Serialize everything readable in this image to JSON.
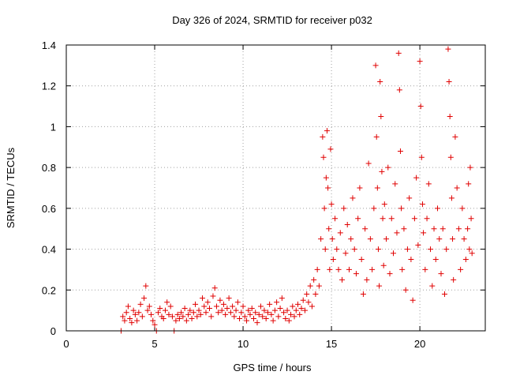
{
  "chart_data": {
    "type": "scatter",
    "title": "Day 326 of 2024, SRMTID for receiver p032",
    "xlabel": "GPS time / hours",
    "ylabel": "SRMTID / TECUs",
    "xlim": [
      0,
      23.7
    ],
    "ylim": [
      0,
      1.4
    ],
    "x_ticks": [
      0,
      5,
      10,
      15,
      20
    ],
    "y_ticks": [
      0,
      0.2,
      0.4,
      0.6,
      0.8,
      1,
      1.2,
      1.4
    ],
    "x_tick_labels": [
      "0",
      "5",
      "10",
      "15",
      "20"
    ],
    "y_tick_labels": [
      "0",
      "0.2",
      "0.4",
      "0.6",
      "0.8",
      "1",
      "1.2",
      "1.4"
    ],
    "grid": true,
    "marker": "+",
    "color": "#e00000",
    "series": [
      {
        "name": "p032",
        "points": [
          [
            3.1,
            0.0
          ],
          [
            3.2,
            0.07
          ],
          [
            3.3,
            0.05
          ],
          [
            3.4,
            0.09
          ],
          [
            3.5,
            0.12
          ],
          [
            3.6,
            0.06
          ],
          [
            3.7,
            0.04
          ],
          [
            3.8,
            0.1
          ],
          [
            3.9,
            0.08
          ],
          [
            4.0,
            0.05
          ],
          [
            4.1,
            0.09
          ],
          [
            4.2,
            0.13
          ],
          [
            4.3,
            0.07
          ],
          [
            4.4,
            0.16
          ],
          [
            4.5,
            0.22
          ],
          [
            4.6,
            0.1
          ],
          [
            4.7,
            0.12
          ],
          [
            4.8,
            0.08
          ],
          [
            4.9,
            0.05
          ],
          [
            5.0,
            0.03
          ],
          [
            5.1,
            0.0
          ],
          [
            5.2,
            0.09
          ],
          [
            5.3,
            0.11
          ],
          [
            5.4,
            0.07
          ],
          [
            5.5,
            0.06
          ],
          [
            5.6,
            0.1
          ],
          [
            5.7,
            0.14
          ],
          [
            5.8,
            0.08
          ],
          [
            5.9,
            0.12
          ],
          [
            6.0,
            0.07
          ],
          [
            6.1,
            0.0
          ],
          [
            6.2,
            0.05
          ],
          [
            6.3,
            0.08
          ],
          [
            6.4,
            0.06
          ],
          [
            6.5,
            0.09
          ],
          [
            6.6,
            0.07
          ],
          [
            6.7,
            0.11
          ],
          [
            6.8,
            0.05
          ],
          [
            6.9,
            0.08
          ],
          [
            7.0,
            0.1
          ],
          [
            7.1,
            0.06
          ],
          [
            7.2,
            0.09
          ],
          [
            7.3,
            0.13
          ],
          [
            7.4,
            0.07
          ],
          [
            7.5,
            0.1
          ],
          [
            7.6,
            0.08
          ],
          [
            7.7,
            0.16
          ],
          [
            7.8,
            0.12
          ],
          [
            7.9,
            0.09
          ],
          [
            8.0,
            0.14
          ],
          [
            8.1,
            0.11
          ],
          [
            8.2,
            0.07
          ],
          [
            8.3,
            0.17
          ],
          [
            8.4,
            0.21
          ],
          [
            8.5,
            0.12
          ],
          [
            8.6,
            0.09
          ],
          [
            8.7,
            0.15
          ],
          [
            8.8,
            0.1
          ],
          [
            8.9,
            0.13
          ],
          [
            9.0,
            0.08
          ],
          [
            9.1,
            0.11
          ],
          [
            9.2,
            0.16
          ],
          [
            9.3,
            0.09
          ],
          [
            9.4,
            0.12
          ],
          [
            9.5,
            0.07
          ],
          [
            9.6,
            0.1
          ],
          [
            9.7,
            0.14
          ],
          [
            9.8,
            0.06
          ],
          [
            9.9,
            0.09
          ],
          [
            10.0,
            0.12
          ],
          [
            10.1,
            0.07
          ],
          [
            10.2,
            0.05
          ],
          [
            10.3,
            0.1
          ],
          [
            10.4,
            0.08
          ],
          [
            10.5,
            0.11
          ],
          [
            10.6,
            0.06
          ],
          [
            10.7,
            0.09
          ],
          [
            10.8,
            0.04
          ],
          [
            10.9,
            0.08
          ],
          [
            11.0,
            0.12
          ],
          [
            11.1,
            0.07
          ],
          [
            11.2,
            0.1
          ],
          [
            11.3,
            0.06
          ],
          [
            11.4,
            0.09
          ],
          [
            11.5,
            0.13
          ],
          [
            11.6,
            0.08
          ],
          [
            11.7,
            0.05
          ],
          [
            11.8,
            0.1
          ],
          [
            11.9,
            0.14
          ],
          [
            12.0,
            0.07
          ],
          [
            12.1,
            0.11
          ],
          [
            12.2,
            0.16
          ],
          [
            12.3,
            0.09
          ],
          [
            12.4,
            0.06
          ],
          [
            12.5,
            0.1
          ],
          [
            12.6,
            0.05
          ],
          [
            12.7,
            0.08
          ],
          [
            12.8,
            0.12
          ],
          [
            12.9,
            0.07
          ],
          [
            13.0,
            0.1
          ],
          [
            13.1,
            0.13
          ],
          [
            13.2,
            0.08
          ],
          [
            13.3,
            0.11
          ],
          [
            13.4,
            0.15
          ],
          [
            13.5,
            0.1
          ],
          [
            13.6,
            0.18
          ],
          [
            13.7,
            0.14
          ],
          [
            13.8,
            0.22
          ],
          [
            13.9,
            0.12
          ],
          [
            14.0,
            0.25
          ],
          [
            14.1,
            0.18
          ],
          [
            14.2,
            0.3
          ],
          [
            14.3,
            0.22
          ],
          [
            14.4,
            0.45
          ],
          [
            14.5,
            0.95
          ],
          [
            14.55,
            0.85
          ],
          [
            14.6,
            0.6
          ],
          [
            14.65,
            0.4
          ],
          [
            14.7,
            0.75
          ],
          [
            14.75,
            0.98
          ],
          [
            14.8,
            0.7
          ],
          [
            14.85,
            0.5
          ],
          [
            14.9,
            0.3
          ],
          [
            14.95,
            0.89
          ],
          [
            15.0,
            0.62
          ],
          [
            15.05,
            0.45
          ],
          [
            15.1,
            0.35
          ],
          [
            15.2,
            0.55
          ],
          [
            15.3,
            0.4
          ],
          [
            15.4,
            0.3
          ],
          [
            15.5,
            0.48
          ],
          [
            15.6,
            0.25
          ],
          [
            15.7,
            0.6
          ],
          [
            15.8,
            0.38
          ],
          [
            15.9,
            0.52
          ],
          [
            16.0,
            0.3
          ],
          [
            16.1,
            0.45
          ],
          [
            16.2,
            0.65
          ],
          [
            16.3,
            0.4
          ],
          [
            16.4,
            0.28
          ],
          [
            16.5,
            0.55
          ],
          [
            16.6,
            0.7
          ],
          [
            16.7,
            0.35
          ],
          [
            16.8,
            0.18
          ],
          [
            16.9,
            0.5
          ],
          [
            17.0,
            0.25
          ],
          [
            17.1,
            0.82
          ],
          [
            17.2,
            0.45
          ],
          [
            17.3,
            0.3
          ],
          [
            17.4,
            0.6
          ],
          [
            17.5,
            1.3
          ],
          [
            17.55,
            0.95
          ],
          [
            17.6,
            0.7
          ],
          [
            17.65,
            0.4
          ],
          [
            17.7,
            0.22
          ],
          [
            17.75,
            1.22
          ],
          [
            17.8,
            1.05
          ],
          [
            17.85,
            0.78
          ],
          [
            17.9,
            0.55
          ],
          [
            17.95,
            0.32
          ],
          [
            18.0,
            0.62
          ],
          [
            18.1,
            0.45
          ],
          [
            18.2,
            0.8
          ],
          [
            18.3,
            0.28
          ],
          [
            18.4,
            0.55
          ],
          [
            18.5,
            0.38
          ],
          [
            18.6,
            0.72
          ],
          [
            18.7,
            0.48
          ],
          [
            18.8,
            1.36
          ],
          [
            18.85,
            1.18
          ],
          [
            18.9,
            0.88
          ],
          [
            18.95,
            0.6
          ],
          [
            19.0,
            0.3
          ],
          [
            19.1,
            0.5
          ],
          [
            19.2,
            0.2
          ],
          [
            19.3,
            0.4
          ],
          [
            19.4,
            0.65
          ],
          [
            19.5,
            0.35
          ],
          [
            19.6,
            0.15
          ],
          [
            19.7,
            0.55
          ],
          [
            19.8,
            0.75
          ],
          [
            19.9,
            0.42
          ],
          [
            20.0,
            1.32
          ],
          [
            20.05,
            1.1
          ],
          [
            20.1,
            0.85
          ],
          [
            20.15,
            0.62
          ],
          [
            20.2,
            0.48
          ],
          [
            20.3,
            0.3
          ],
          [
            20.4,
            0.55
          ],
          [
            20.5,
            0.72
          ],
          [
            20.6,
            0.4
          ],
          [
            20.7,
            0.22
          ],
          [
            20.8,
            0.5
          ],
          [
            20.9,
            0.35
          ],
          [
            21.0,
            0.6
          ],
          [
            21.1,
            0.45
          ],
          [
            21.2,
            0.28
          ],
          [
            21.3,
            0.5
          ],
          [
            21.4,
            0.18
          ],
          [
            21.5,
            0.4
          ],
          [
            21.6,
            1.38
          ],
          [
            21.65,
            1.22
          ],
          [
            21.7,
            1.05
          ],
          [
            21.75,
            0.85
          ],
          [
            21.8,
            0.65
          ],
          [
            21.85,
            0.45
          ],
          [
            21.9,
            0.25
          ],
          [
            22.0,
            0.95
          ],
          [
            22.1,
            0.7
          ],
          [
            22.2,
            0.5
          ],
          [
            22.3,
            0.3
          ],
          [
            22.4,
            0.6
          ],
          [
            22.5,
            0.45
          ],
          [
            22.6,
            0.35
          ],
          [
            22.7,
            0.5
          ],
          [
            22.75,
            0.72
          ],
          [
            22.8,
            0.4
          ],
          [
            22.85,
            0.8
          ],
          [
            22.9,
            0.55
          ],
          [
            22.95,
            0.38
          ]
        ]
      }
    ]
  }
}
